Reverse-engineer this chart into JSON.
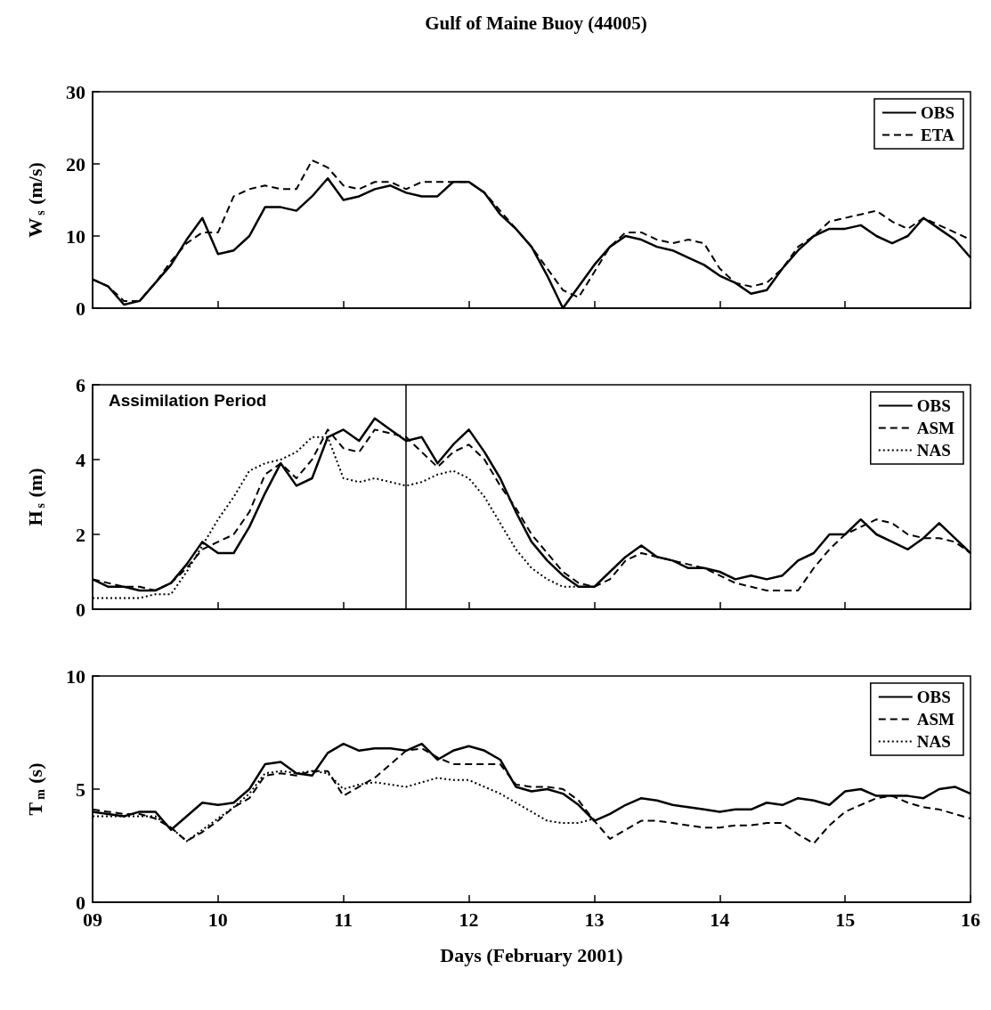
{
  "chart_data": [
    {
      "type": "line",
      "title": "Gulf of Maine Buoy (44005)",
      "ylabel": "W$_{s}$ (m/s)",
      "x": [
        9,
        9.125,
        9.25,
        9.375,
        9.5,
        9.625,
        9.75,
        9.875,
        10,
        10.125,
        10.25,
        10.375,
        10.5,
        10.625,
        10.75,
        10.875,
        11,
        11.125,
        11.25,
        11.375,
        11.5,
        11.625,
        11.75,
        11.875,
        12,
        12.125,
        12.25,
        12.375,
        12.5,
        12.625,
        12.75,
        12.875,
        13,
        13.125,
        13.25,
        13.375,
        13.5,
        13.625,
        13.75,
        13.875,
        14,
        14.125,
        14.25,
        14.375,
        14.5,
        14.625,
        14.75,
        14.875,
        15,
        15.125,
        15.25,
        15.375,
        15.5,
        15.625,
        15.75,
        15.875,
        16
      ],
      "series": [
        {
          "name": "OBS",
          "color": "#000000",
          "line_style": "solid",
          "values": [
            4,
            3,
            0.5,
            1,
            3.5,
            6,
            9.5,
            12.5,
            7.5,
            8,
            10,
            14,
            14,
            13.5,
            15.5,
            18,
            15,
            15.5,
            16.5,
            17,
            16,
            15.5,
            15.5,
            17.5,
            17.5,
            16,
            13,
            11,
            8.5,
            4.5,
            0,
            3,
            6,
            8.5,
            10,
            9.5,
            8.5,
            8,
            7,
            6,
            4.5,
            3.5,
            2,
            2.5,
            5.5,
            8,
            10,
            11,
            11,
            11.5,
            10,
            9,
            10,
            12.5,
            11,
            9.5,
            7
          ]
        },
        {
          "name": "ETA",
          "color": "#000000",
          "line_style": "dashed",
          "values": [
            4,
            3,
            1,
            1,
            3.5,
            6.5,
            9,
            10.5,
            10.5,
            15.5,
            16.5,
            17,
            16.5,
            16.5,
            20.5,
            19.5,
            17,
            16.5,
            17.5,
            17.5,
            16.5,
            17.5,
            17.5,
            17.5,
            17.5,
            16,
            13.5,
            11,
            8.5,
            5.5,
            2.5,
            1.5,
            5,
            8.5,
            10.5,
            10.5,
            9.5,
            9,
            9.5,
            9,
            5.5,
            3.5,
            3,
            3.5,
            5.5,
            8.5,
            10,
            12,
            12.5,
            13,
            13.5,
            12,
            11,
            12.5,
            11.5,
            10.5,
            9.5
          ]
        }
      ],
      "xlim": [
        9,
        16
      ],
      "xticks": [
        9,
        10,
        11,
        12,
        13,
        14,
        15,
        16
      ],
      "ylim": [
        0,
        30
      ],
      "yticks": [
        0,
        10,
        20,
        30
      ],
      "tick_labels": "y",
      "legend": "top right",
      "marker": "none",
      "grid": false
    },
    {
      "type": "line",
      "ylabel": "H$_{s}$ (m)",
      "x": [
        9,
        9.125,
        9.25,
        9.375,
        9.5,
        9.625,
        9.75,
        9.875,
        10,
        10.125,
        10.25,
        10.375,
        10.5,
        10.625,
        10.75,
        10.875,
        11,
        11.125,
        11.25,
        11.375,
        11.5,
        11.625,
        11.75,
        11.875,
        12,
        12.125,
        12.25,
        12.375,
        12.5,
        12.625,
        12.75,
        12.875,
        13,
        13.125,
        13.25,
        13.375,
        13.5,
        13.625,
        13.75,
        13.875,
        14,
        14.125,
        14.25,
        14.375,
        14.5,
        14.625,
        14.75,
        14.875,
        15,
        15.125,
        15.25,
        15.375,
        15.5,
        15.625,
        15.75,
        15.875,
        16
      ],
      "series": [
        {
          "name": "OBS",
          "color": "#000000",
          "line_style": "solid",
          "values": [
            0.8,
            0.6,
            0.6,
            0.5,
            0.5,
            0.7,
            1.2,
            1.8,
            1.5,
            1.5,
            2.2,
            3.1,
            3.9,
            3.3,
            3.5,
            4.6,
            4.8,
            4.5,
            5.1,
            4.8,
            4.5,
            4.6,
            3.9,
            4.4,
            4.8,
            4.2,
            3.5,
            2.6,
            1.8,
            1.3,
            0.9,
            0.6,
            0.6,
            1,
            1.4,
            1.7,
            1.4,
            1.3,
            1.1,
            1.1,
            1,
            0.8,
            0.9,
            0.8,
            0.9,
            1.3,
            1.5,
            2,
            2,
            2.4,
            2,
            1.8,
            1.6,
            1.9,
            2.3,
            1.9,
            1.5
          ]
        },
        {
          "name": "ASM",
          "color": "#000000",
          "line_style": "dashed",
          "values": [
            0.8,
            0.7,
            0.6,
            0.6,
            0.5,
            0.7,
            1.1,
            1.6,
            1.8,
            2,
            2.6,
            3.6,
            3.9,
            3.5,
            4,
            4.8,
            4.3,
            4.2,
            4.8,
            4.7,
            4.6,
            4.2,
            3.8,
            4.2,
            4.4,
            4,
            3.3,
            2.7,
            2,
            1.5,
            1,
            0.7,
            0.6,
            0.8,
            1.3,
            1.5,
            1.4,
            1.3,
            1.2,
            1.1,
            0.9,
            0.7,
            0.6,
            0.5,
            0.5,
            0.5,
            1.1,
            1.6,
            2,
            2.2,
            2.4,
            2.3,
            2,
            1.9,
            1.9,
            1.8,
            1.5
          ]
        },
        {
          "name": "NAS",
          "color": "#000000",
          "line_style": "dotted",
          "values": [
            0.3,
            0.3,
            0.3,
            0.3,
            0.4,
            0.4,
            1,
            1.7,
            2.4,
            3,
            3.7,
            3.9,
            4,
            4.2,
            4.6,
            4.6,
            3.5,
            3.4,
            3.5,
            3.4,
            3.3,
            3.4,
            3.6,
            3.7,
            3.5,
            3,
            2.3,
            1.6,
            1.1,
            0.8,
            0.6,
            0.6,
            0.6,
            null,
            null,
            null,
            null,
            null,
            null,
            null,
            null,
            null,
            null,
            null,
            null,
            null,
            null,
            null,
            null,
            null,
            null,
            null,
            null,
            null,
            null,
            null,
            null
          ]
        }
      ],
      "ref_lines": [
        {
          "axis": "x",
          "value": 11.5,
          "color": "#000000",
          "line_style": "solid"
        }
      ],
      "annotations": [
        "Assimilation Period"
      ],
      "xlim": [
        9,
        16
      ],
      "xticks": [
        9,
        10,
        11,
        12,
        13,
        14,
        15,
        16
      ],
      "ylim": [
        0,
        6
      ],
      "yticks": [
        0,
        2,
        4,
        6
      ],
      "tick_labels": "y",
      "legend": "top right",
      "marker": "none",
      "grid": false
    },
    {
      "type": "line",
      "ylabel": "T$_{m}$ (s)",
      "xlabel": "Days (February 2001)",
      "x": [
        9,
        9.125,
        9.25,
        9.375,
        9.5,
        9.625,
        9.75,
        9.875,
        10,
        10.125,
        10.25,
        10.375,
        10.5,
        10.625,
        10.75,
        10.875,
        11,
        11.125,
        11.25,
        11.375,
        11.5,
        11.625,
        11.75,
        11.875,
        12,
        12.125,
        12.25,
        12.375,
        12.5,
        12.625,
        12.75,
        12.875,
        13,
        13.125,
        13.25,
        13.375,
        13.5,
        13.625,
        13.75,
        13.875,
        14,
        14.125,
        14.25,
        14.375,
        14.5,
        14.625,
        14.75,
        14.875,
        15,
        15.125,
        15.25,
        15.375,
        15.5,
        15.625,
        15.75,
        15.875,
        16
      ],
      "series": [
        {
          "name": "OBS",
          "color": "#000000",
          "line_style": "solid",
          "values": [
            4,
            3.9,
            3.8,
            4,
            4,
            3.2,
            3.8,
            4.4,
            4.3,
            4.4,
            5,
            6.1,
            6.2,
            5.7,
            5.6,
            6.6,
            7,
            6.7,
            6.8,
            6.8,
            6.7,
            7,
            6.3,
            6.7,
            6.9,
            6.7,
            6.3,
            5.1,
            4.9,
            5,
            4.8,
            4.3,
            3.6,
            3.9,
            4.3,
            4.6,
            4.5,
            4.3,
            4.2,
            4.1,
            4,
            4.1,
            4.1,
            4.4,
            4.3,
            4.6,
            4.5,
            4.3,
            4.9,
            5,
            4.7,
            4.7,
            4.7,
            4.6,
            5,
            5.1,
            4.8
          ]
        },
        {
          "name": "ASM",
          "color": "#000000",
          "line_style": "dashed",
          "values": [
            4.1,
            4,
            3.9,
            3.9,
            3.7,
            3.3,
            2.7,
            3.1,
            3.6,
            4.2,
            4.6,
            5.6,
            5.7,
            5.6,
            5.8,
            5.8,
            4.7,
            5.1,
            5.5,
            6.1,
            6.7,
            6.8,
            6.4,
            6.1,
            6.1,
            6.1,
            6.1,
            5.2,
            5.1,
            5.1,
            5,
            4.5,
            3.6,
            2.8,
            3.2,
            3.6,
            3.6,
            3.5,
            3.4,
            3.3,
            3.3,
            3.4,
            3.4,
            3.5,
            3.5,
            3,
            2.6,
            3.4,
            4,
            4.3,
            4.6,
            4.7,
            4.4,
            4.2,
            4.1,
            3.9,
            3.7
          ]
        },
        {
          "name": "NAS",
          "color": "#000000",
          "line_style": "dotted",
          "values": [
            3.8,
            3.8,
            3.8,
            3.8,
            3.8,
            3.3,
            2.7,
            3.2,
            3.7,
            4.2,
            4.8,
            5.7,
            5.8,
            5.7,
            5.8,
            5.7,
            5,
            5.2,
            5.3,
            5.2,
            5.1,
            5.3,
            5.5,
            5.4,
            5.4,
            5.1,
            4.8,
            4.4,
            4,
            3.6,
            3.5,
            3.5,
            3.7,
            null,
            null,
            null,
            null,
            null,
            null,
            null,
            null,
            null,
            null,
            null,
            null,
            null,
            null,
            null,
            null,
            null,
            null,
            null,
            null,
            null,
            null,
            null,
            null
          ]
        }
      ],
      "xlim": [
        9,
        16
      ],
      "xticks": [
        {
          "value": 9,
          "label": "09"
        },
        10,
        11,
        12,
        13,
        14,
        15,
        16
      ],
      "ylim": [
        0,
        10
      ],
      "yticks": [
        0,
        5,
        10
      ],
      "legend": "top right",
      "marker": "none",
      "grid": false
    }
  ]
}
